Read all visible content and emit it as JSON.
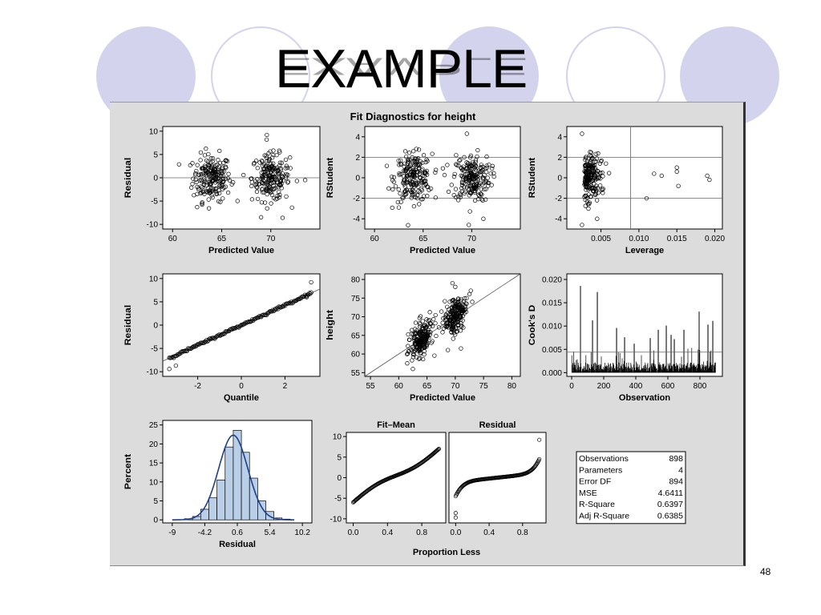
{
  "slide": {
    "title": "EXAMPLE",
    "page_number": "48",
    "circle_fill": "#d3d3ee"
  },
  "figure_title": "Fit Diagnostics for height",
  "chart_data": [
    {
      "type": "scatter",
      "id": "residual-vs-predicted",
      "xlabel": "Predicted Value",
      "ylabel": "Residual",
      "xlim": [
        59,
        75
      ],
      "ylim": [
        -11,
        11
      ],
      "xticks": [
        60,
        65,
        70
      ],
      "yticks": [
        -10,
        -5,
        0,
        5,
        10
      ],
      "reference_lines_y": [
        0
      ],
      "cluster_centers": [
        [
          64,
          0
        ],
        [
          70,
          0
        ]
      ],
      "cluster_spread": [
        1.6,
        2.5
      ],
      "extreme_points": [
        [
          69.6,
          9.2
        ],
        [
          62.5,
          -6.3
        ],
        [
          71.2,
          -8.6
        ],
        [
          63,
          -5.5
        ],
        [
          73.5,
          -0.5
        ]
      ]
    },
    {
      "type": "scatter",
      "id": "rstudent-vs-predicted",
      "xlabel": "Predicted Value",
      "ylabel": "RStudent",
      "xlim": [
        59,
        75
      ],
      "ylim": [
        -5,
        5
      ],
      "xticks": [
        60,
        65,
        70
      ],
      "yticks": [
        -4,
        -2,
        0,
        2,
        4
      ],
      "reference_lines_y": [
        -2,
        2
      ],
      "cluster_centers": [
        [
          64,
          0
        ],
        [
          70,
          0
        ]
      ],
      "cluster_spread": [
        1.6,
        1.15
      ],
      "extreme_points": [
        [
          69.5,
          4.3
        ],
        [
          62.5,
          -2.9
        ],
        [
          71.2,
          -4.0
        ],
        [
          69.7,
          -4.6
        ],
        [
          64,
          2.6
        ]
      ]
    },
    {
      "type": "scatter",
      "id": "rstudent-vs-leverage",
      "xlabel": "Leverage",
      "ylabel": "RStudent",
      "xlim": [
        0.0005,
        0.021
      ],
      "ylim": [
        -5,
        5
      ],
      "xticks": [
        0.005,
        0.01,
        0.015,
        0.02
      ],
      "xtick_labels": [
        "0.005",
        "0.010",
        "0.015",
        "0.020"
      ],
      "yticks": [
        -4,
        -2,
        0,
        2,
        4
      ],
      "reference_lines_y": [
        -2,
        2
      ],
      "reference_lines_x": [
        0.0089
      ],
      "cluster_centers": [
        [
          0.004,
          0
        ]
      ],
      "cluster_spread": [
        0.0022,
        1.15
      ],
      "extreme_points": [
        [
          0.0025,
          4.3
        ],
        [
          0.0025,
          -4.6
        ],
        [
          0.015,
          1.0
        ],
        [
          0.015,
          0.6
        ],
        [
          0.019,
          0.2
        ],
        [
          0.0193,
          -0.2
        ],
        [
          0.0152,
          -0.8
        ],
        [
          0.013,
          0.2
        ],
        [
          0.011,
          -2.0
        ],
        [
          0.012,
          0.4
        ],
        [
          0.0045,
          -4.0
        ]
      ]
    },
    {
      "type": "scatter",
      "id": "residual-qq",
      "xlabel": "Quantile",
      "ylabel": "Residual",
      "xlim": [
        -3.6,
        3.6
      ],
      "ylim": [
        -11,
        11
      ],
      "xticks": [
        -2,
        0,
        2
      ],
      "yticks": [
        -10,
        -5,
        0,
        5,
        10
      ],
      "reference_line": {
        "slope": 2.15,
        "intercept": 0
      },
      "qq_range": [
        -3.3,
        3.2
      ],
      "extreme_points": [
        [
          -3.3,
          -9.4
        ],
        [
          -3.0,
          -8.7
        ],
        [
          3.2,
          9.2
        ],
        [
          3.0,
          6.2
        ]
      ]
    },
    {
      "type": "scatter",
      "id": "height-vs-predicted",
      "xlabel": "Predicted Value",
      "ylabel": "height",
      "xlim": [
        54,
        81.5
      ],
      "ylim": [
        54,
        81.5
      ],
      "xticks": [
        55,
        60,
        65,
        70,
        75,
        80
      ],
      "yticks": [
        55,
        60,
        65,
        70,
        75,
        80
      ],
      "reference_line": {
        "slope": 1,
        "intercept": 0
      },
      "cluster_centers": [
        [
          64,
          64
        ],
        [
          70,
          70
        ]
      ],
      "cluster_spread": [
        1.6,
        2.3
      ],
      "extreme_points": [
        [
          69.5,
          79
        ],
        [
          70,
          78
        ],
        [
          62.5,
          56
        ],
        [
          61.5,
          57.5
        ],
        [
          71,
          61.5
        ],
        [
          72,
          75
        ],
        [
          73,
          74
        ]
      ]
    },
    {
      "type": "bar",
      "id": "cooks-d",
      "xlabel": "Observation",
      "ylabel": "Cook's D",
      "xlim": [
        -30,
        940
      ],
      "ylim": [
        -0.0008,
        0.0212
      ],
      "xticks": [
        0,
        200,
        400,
        600,
        800
      ],
      "yticks": [
        0,
        0.005,
        0.01,
        0.015,
        0.02
      ],
      "ytick_labels": [
        "0.000",
        "0.005",
        "0.010",
        "0.015",
        "0.020"
      ],
      "reference_lines_y": [
        0.0044
      ],
      "n_observations": 898,
      "notable_spikes": [
        [
          55,
          0.0186
        ],
        [
          130,
          0.0112
        ],
        [
          160,
          0.0173
        ],
        [
          280,
          0.0096
        ],
        [
          330,
          0.0076
        ],
        [
          390,
          0.0062
        ],
        [
          490,
          0.0074
        ],
        [
          540,
          0.0092
        ],
        [
          590,
          0.0101
        ],
        [
          620,
          0.0081
        ],
        [
          640,
          0.0072
        ],
        [
          700,
          0.0092
        ],
        [
          795,
          0.0131
        ],
        [
          850,
          0.0103
        ],
        [
          880,
          0.0111
        ]
      ]
    },
    {
      "type": "bar",
      "id": "residual-histogram",
      "xlabel": "Residual",
      "ylabel": "Percent",
      "xlim": [
        -10.4,
        11.6
      ],
      "ylim": [
        -0.8,
        26.2
      ],
      "xticks": [
        -9,
        -4.2,
        0.6,
        5.4,
        10.2
      ],
      "xtick_labels": [
        "-9",
        "-4.2",
        "0.6",
        "5.4",
        "10.2"
      ],
      "yticks": [
        0,
        5,
        10,
        15,
        20,
        25
      ],
      "bin_width": 1.2,
      "bin_starts": [
        -7.2,
        -6.0,
        -4.8,
        -3.6,
        -2.4,
        -1.2,
        0.0,
        1.2,
        2.4,
        3.6,
        4.8,
        6.0,
        7.2
      ],
      "values": [
        0.3,
        0.9,
        2.8,
        5.8,
        10.5,
        19.2,
        23.6,
        17.8,
        11.0,
        5.0,
        2.2,
        0.5,
        0.2
      ],
      "curve": {
        "type": "normal",
        "mean": 0,
        "sd": 2.15,
        "peak": 22.3
      }
    },
    {
      "type": "line",
      "id": "fit-mean-residual-spread",
      "panel_titles": [
        "Fit–Mean",
        "Residual"
      ],
      "xlabel": "Proportion Less",
      "xlim": [
        -0.08,
        1.08
      ],
      "ylim": [
        -11,
        11
      ],
      "xticks": [
        0,
        0.4,
        0.8
      ],
      "xtick_labels": [
        "0.0",
        "0.4",
        "0.8"
      ],
      "yticks": [
        -10,
        -5,
        0,
        5,
        10
      ],
      "series": [
        {
          "name": "Fit–Mean",
          "y_start": -6,
          "y_end": 7
        },
        {
          "name": "Residual",
          "y_start": -10,
          "y_end": 9.2
        }
      ]
    },
    {
      "type": "table",
      "id": "fit-statistics",
      "rows": [
        {
          "label": "Observations",
          "value": "898"
        },
        {
          "label": "Parameters",
          "value": "4"
        },
        {
          "label": "Error DF",
          "value": "894"
        },
        {
          "label": "MSE",
          "value": "4.6411"
        },
        {
          "label": "R-Square",
          "value": "0.6397"
        },
        {
          "label": "Adj R-Square",
          "value": "0.6385"
        }
      ]
    }
  ]
}
